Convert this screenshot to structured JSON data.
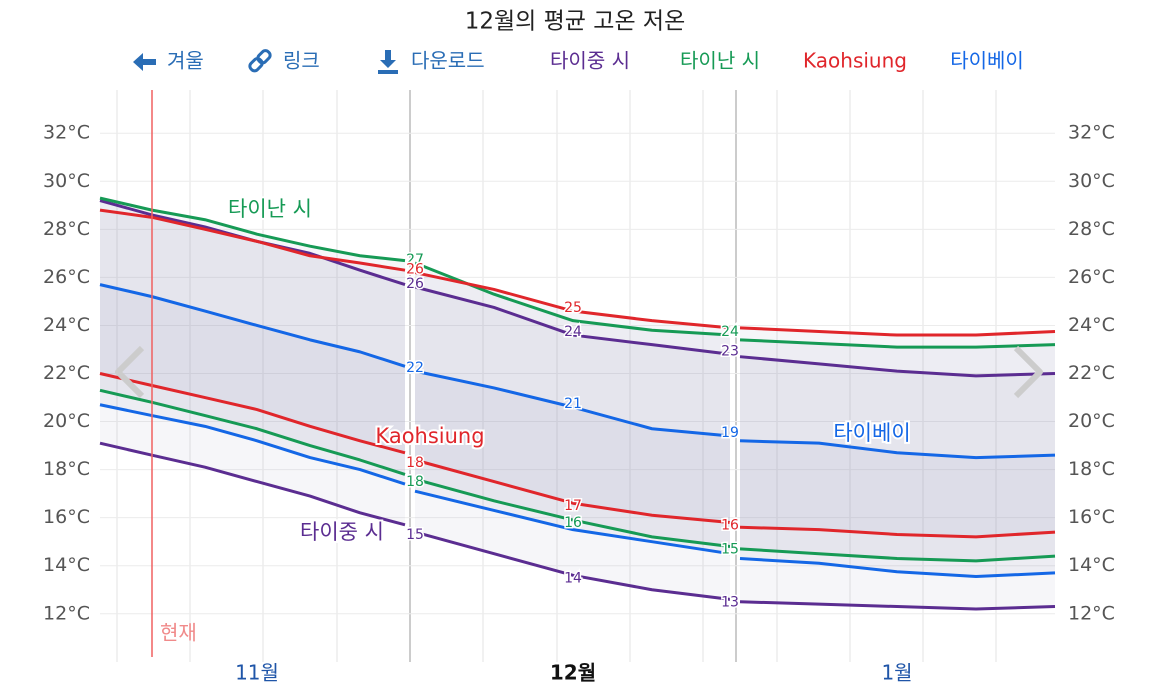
{
  "toolbar": {
    "back": "겨울",
    "link": "링크",
    "download": "다운로드"
  },
  "chart_data": {
    "type": "line",
    "title": "12월의 평균 고온 저온",
    "categories": [
      null,
      null,
      null,
      "11월",
      null,
      null,
      null,
      null,
      null,
      "12월",
      null,
      null,
      null,
      null,
      "1월",
      null,
      null
    ],
    "series": [
      {
        "name": "타이중 시",
        "color": "#5b2d91",
        "high": {
          "values": [
            29.2,
            28.6,
            28.1,
            27.5,
            27.0,
            26.3,
            25.7,
            25.6,
            24.75,
            23.6,
            23.2,
            22.8,
            22.7,
            22.4,
            22.1,
            21.9,
            22.0
          ],
          "value_labels": [
            null,
            null,
            null,
            null,
            null,
            null,
            null,
            "26",
            null,
            "24",
            null,
            "23",
            null,
            null,
            null,
            null,
            null
          ]
        },
        "low": {
          "values": [
            19.1,
            18.6,
            18.1,
            17.5,
            16.9,
            16.2,
            15.7,
            15.4,
            14.5,
            13.6,
            13.0,
            12.6,
            12.5,
            12.4,
            12.3,
            12.2,
            12.3
          ],
          "value_labels": [
            null,
            null,
            null,
            null,
            null,
            null,
            null,
            "15",
            null,
            "14",
            null,
            "13",
            null,
            null,
            null,
            null,
            null
          ]
        }
      },
      {
        "name": "타이난 시",
        "color": "#169a55",
        "high": {
          "values": [
            29.3,
            28.8,
            28.4,
            27.8,
            27.3,
            26.9,
            26.7,
            26.6,
            25.3,
            24.2,
            23.8,
            23.6,
            23.4,
            23.25,
            23.1,
            23.1,
            23.2
          ],
          "value_labels": [
            null,
            null,
            null,
            null,
            null,
            null,
            null,
            "27",
            null,
            null,
            null,
            "24",
            null,
            null,
            null,
            null,
            null
          ]
        },
        "low": {
          "values": [
            21.3,
            20.8,
            20.25,
            19.7,
            19.0,
            18.4,
            17.8,
            17.6,
            16.7,
            15.9,
            15.2,
            14.8,
            14.7,
            14.5,
            14.3,
            14.2,
            14.4
          ],
          "value_labels": [
            null,
            null,
            null,
            null,
            null,
            null,
            null,
            "18",
            null,
            "16",
            null,
            "15",
            null,
            null,
            null,
            null,
            null
          ]
        }
      },
      {
        "name": "Kaohsiung",
        "color": "#e0262b",
        "high": {
          "values": [
            28.8,
            28.5,
            28.0,
            27.5,
            26.9,
            26.6,
            26.3,
            26.2,
            25.5,
            24.6,
            24.2,
            23.9,
            23.9,
            23.75,
            23.6,
            23.6,
            23.75
          ],
          "value_labels": [
            null,
            null,
            null,
            null,
            null,
            null,
            null,
            "26",
            null,
            "25",
            null,
            null,
            null,
            null,
            null,
            null,
            null
          ]
        },
        "low": {
          "values": [
            22.0,
            21.5,
            21.0,
            20.5,
            19.8,
            19.2,
            18.7,
            18.4,
            17.5,
            16.6,
            16.1,
            15.8,
            15.6,
            15.5,
            15.3,
            15.2,
            15.4
          ],
          "value_labels": [
            null,
            null,
            null,
            null,
            null,
            null,
            null,
            "18",
            null,
            "17",
            null,
            "16",
            null,
            null,
            null,
            null,
            null
          ]
        }
      },
      {
        "name": "타이베이",
        "color": "#1467e6",
        "high": {
          "values": [
            25.7,
            25.2,
            24.6,
            24.0,
            23.4,
            22.9,
            22.3,
            22.1,
            21.4,
            20.6,
            19.7,
            19.4,
            19.2,
            19.1,
            18.7,
            18.5,
            18.6
          ],
          "value_labels": [
            null,
            null,
            null,
            null,
            null,
            null,
            null,
            "22",
            null,
            "21",
            null,
            "19",
            null,
            null,
            null,
            null,
            null
          ]
        },
        "low": {
          "values": [
            20.7,
            20.25,
            19.8,
            19.2,
            18.5,
            18.0,
            17.4,
            17.1,
            16.3,
            15.5,
            15.0,
            14.5,
            14.3,
            14.1,
            13.75,
            13.55,
            13.7
          ],
          "value_labels": [
            null,
            null,
            null,
            null,
            null,
            null,
            null,
            null,
            null,
            null,
            null,
            null,
            null,
            null,
            null,
            null,
            null
          ]
        }
      }
    ],
    "ylim": [
      10.2,
      33.8
    ],
    "yticks": [
      {
        "value": 12,
        "label": "12°C"
      },
      {
        "value": 14,
        "label": "14°C"
      },
      {
        "value": 16,
        "label": "16°C"
      },
      {
        "value": 18,
        "label": "18°C"
      },
      {
        "value": 20,
        "label": "20°C"
      },
      {
        "value": 22,
        "label": "22°C"
      },
      {
        "value": 24,
        "label": "24°C"
      },
      {
        "value": 26,
        "label": "26°C"
      },
      {
        "value": 28,
        "label": "28°C"
      },
      {
        "value": 30,
        "label": "30°C"
      },
      {
        "value": 32,
        "label": "32°C"
      }
    ],
    "grid": true,
    "now_label": "현재"
  }
}
